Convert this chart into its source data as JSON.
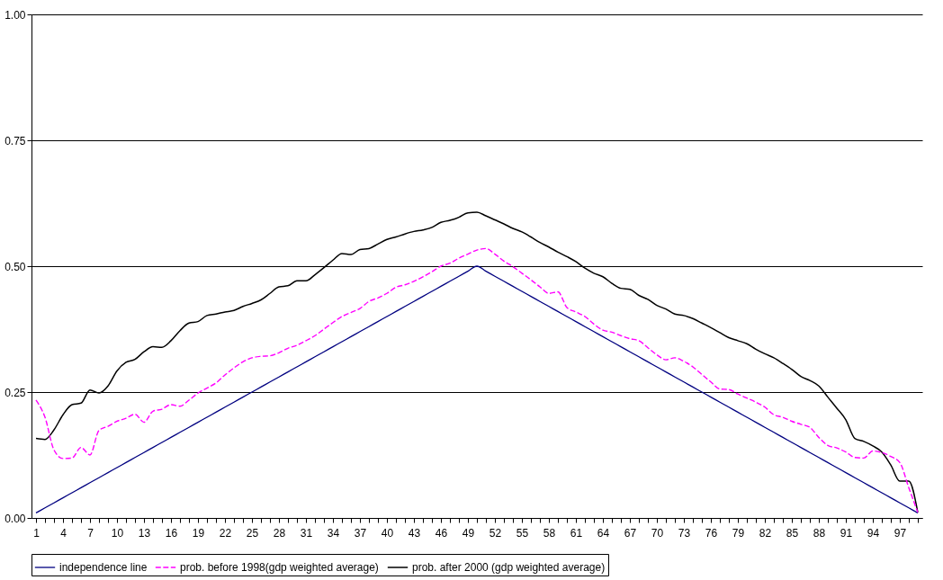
{
  "chart_data": {
    "type": "line",
    "categories": [
      "1",
      null,
      null,
      "4",
      null,
      null,
      "7",
      null,
      null,
      "10",
      null,
      null,
      "13",
      null,
      null,
      "16",
      null,
      null,
      "19",
      null,
      null,
      "22",
      null,
      null,
      "25",
      null,
      null,
      "28",
      null,
      null,
      "31",
      null,
      null,
      "34",
      null,
      null,
      "37",
      null,
      null,
      "40",
      null,
      null,
      "43",
      null,
      null,
      "46",
      null,
      null,
      "49",
      null,
      null,
      "52",
      null,
      null,
      "55",
      null,
      null,
      "58",
      null,
      null,
      "61",
      null,
      null,
      "64",
      null,
      null,
      "67",
      null,
      null,
      "70",
      null,
      null,
      "73",
      null,
      null,
      "76",
      null,
      null,
      "79",
      null,
      null,
      "82",
      null,
      null,
      "85",
      null,
      null,
      "88",
      null,
      null,
      "91",
      null,
      null,
      "94",
      null,
      null,
      "97",
      null,
      null
    ],
    "series": [
      {
        "name": "independence line",
        "color": "#000080",
        "line_style": "solid",
        "values": [
          0.01,
          0.02,
          0.03,
          0.04,
          0.05,
          0.06,
          0.07,
          0.08,
          0.09,
          0.1,
          0.11,
          0.12,
          0.13,
          0.14,
          0.15,
          0.16,
          0.17,
          0.18,
          0.19,
          0.2,
          0.21,
          0.22,
          0.23,
          0.24,
          0.25,
          0.26,
          0.27,
          0.28,
          0.29,
          0.3,
          0.31,
          0.32,
          0.33,
          0.34,
          0.35,
          0.36,
          0.37,
          0.38,
          0.39,
          0.4,
          0.41,
          0.42,
          0.43,
          0.44,
          0.45,
          0.46,
          0.47,
          0.48,
          0.49,
          0.5,
          0.49,
          0.48,
          0.47,
          0.46,
          0.45,
          0.44,
          0.43,
          0.42,
          0.41,
          0.4,
          0.39,
          0.38,
          0.37,
          0.36,
          0.35,
          0.34,
          0.33,
          0.32,
          0.31,
          0.3,
          0.29,
          0.28,
          0.27,
          0.26,
          0.25,
          0.24,
          0.23,
          0.22,
          0.21,
          0.2,
          0.19,
          0.18,
          0.17,
          0.16,
          0.15,
          0.14,
          0.13,
          0.12,
          0.11,
          0.1,
          0.09,
          0.08,
          0.07,
          0.06,
          0.05,
          0.04,
          0.03,
          0.02,
          0.01
        ]
      },
      {
        "name": "prob. before 1998(gdp weighted average)",
        "color": "#ff00ff",
        "line_style": "dashed",
        "values": [
          0.234,
          0.2,
          0.135,
          0.118,
          0.119,
          0.14,
          0.125,
          0.174,
          0.182,
          0.192,
          0.198,
          0.206,
          0.19,
          0.212,
          0.216,
          0.225,
          0.222,
          0.234,
          0.248,
          0.258,
          0.268,
          0.284,
          0.298,
          0.31,
          0.318,
          0.321,
          0.322,
          0.328,
          0.337,
          0.343,
          0.352,
          0.362,
          0.375,
          0.388,
          0.4,
          0.408,
          0.416,
          0.43,
          0.437,
          0.446,
          0.458,
          0.463,
          0.47,
          0.479,
          0.489,
          0.5,
          0.506,
          0.516,
          0.524,
          0.532,
          0.535,
          0.524,
          0.51,
          0.499,
          0.486,
          0.473,
          0.459,
          0.446,
          0.449,
          0.418,
          0.409,
          0.4,
          0.385,
          0.373,
          0.369,
          0.362,
          0.356,
          0.352,
          0.338,
          0.324,
          0.314,
          0.318,
          0.311,
          0.3,
          0.285,
          0.27,
          0.256,
          0.255,
          0.246,
          0.238,
          0.23,
          0.22,
          0.205,
          0.2,
          0.192,
          0.186,
          0.18,
          0.16,
          0.144,
          0.139,
          0.131,
          0.12,
          0.119,
          0.133,
          0.13,
          0.122,
          0.11,
          0.06,
          0.011
        ]
      },
      {
        "name": "prob. after 2000 (gdp weighted average)",
        "color": "#000000",
        "line_style": "solid",
        "values": [
          0.158,
          0.156,
          0.175,
          0.205,
          0.225,
          0.228,
          0.254,
          0.248,
          0.262,
          0.292,
          0.309,
          0.315,
          0.33,
          0.34,
          0.339,
          0.352,
          0.372,
          0.387,
          0.39,
          0.402,
          0.405,
          0.409,
          0.412,
          0.42,
          0.426,
          0.433,
          0.446,
          0.459,
          0.461,
          0.471,
          0.471,
          0.483,
          0.497,
          0.512,
          0.525,
          0.523,
          0.533,
          0.535,
          0.544,
          0.553,
          0.558,
          0.564,
          0.569,
          0.572,
          0.577,
          0.587,
          0.591,
          0.597,
          0.606,
          0.607,
          0.6,
          0.592,
          0.584,
          0.575,
          0.568,
          0.558,
          0.547,
          0.538,
          0.528,
          0.519,
          0.509,
          0.496,
          0.486,
          0.479,
          0.466,
          0.456,
          0.454,
          0.442,
          0.434,
          0.422,
          0.415,
          0.405,
          0.402,
          0.396,
          0.387,
          0.378,
          0.368,
          0.358,
          0.352,
          0.346,
          0.335,
          0.326,
          0.318,
          0.307,
          0.295,
          0.281,
          0.273,
          0.262,
          0.24,
          0.218,
          0.195,
          0.158,
          0.152,
          0.143,
          0.131,
          0.105,
          0.073,
          0.073,
          0.011
        ]
      }
    ],
    "ylim": [
      0,
      1
    ],
    "yticks": [
      {
        "value": 0,
        "label": "0.00"
      },
      {
        "value": 0.25,
        "label": "0.25"
      },
      {
        "value": 0.5,
        "label": "0.50"
      },
      {
        "value": 0.75,
        "label": "0.75"
      },
      {
        "value": 1,
        "label": "1.00"
      }
    ],
    "grid": "y",
    "legend": "bottom"
  }
}
